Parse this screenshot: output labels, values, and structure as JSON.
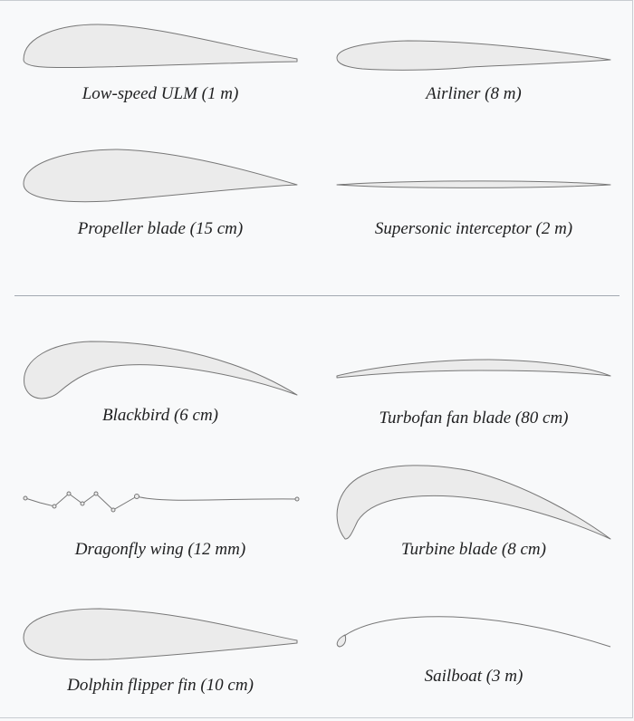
{
  "groups": [
    {
      "items": [
        {
          "label": "Low-speed ULM (1 m)"
        },
        {
          "label": "Airliner (8 m)"
        },
        {
          "label": "Propeller blade (15 cm)"
        },
        {
          "label": "Supersonic interceptor (2 m)"
        }
      ]
    },
    {
      "items": [
        {
          "label": "Blackbird (6 cm)"
        },
        {
          "label": "Turbofan fan blade (80 cm)"
        },
        {
          "label": "Dragonfly wing (12 mm)"
        },
        {
          "label": "Turbine blade (8 cm)"
        },
        {
          "label": "Dolphin flipper fin (10 cm)"
        },
        {
          "label": "Sailboat (3 m)"
        }
      ]
    }
  ],
  "colors": {
    "fill": "#ebebeb",
    "stroke": "#777777",
    "divider": "#a2a9b1",
    "background": "#f8f9fa"
  }
}
